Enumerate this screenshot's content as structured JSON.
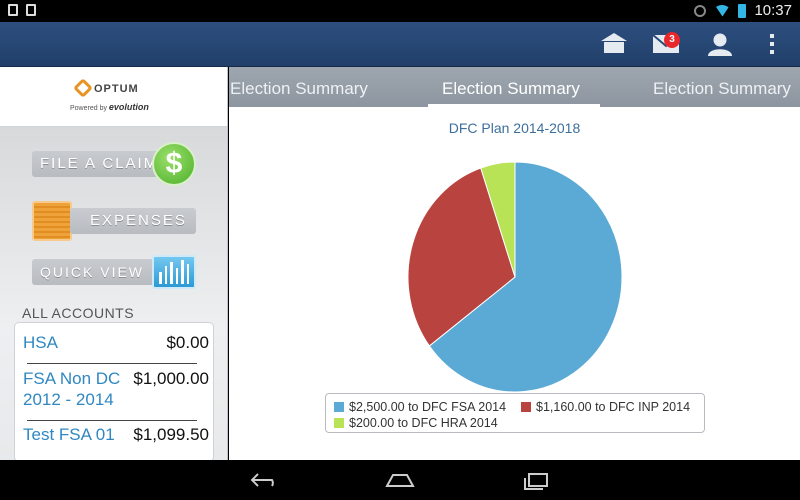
{
  "status_bar": {
    "time": "10:37"
  },
  "app_bar": {
    "mail_badge": "3"
  },
  "sidebar": {
    "logo_text": "OPTUM",
    "logo_powered": "Powered by",
    "logo_brand": "evolution",
    "file_claim_label": "FILE A CLAIM",
    "expenses_label": "EXPENSES",
    "quick_view_label": "QUICK VIEW",
    "accounts_heading": "ALL ACCOUNTS",
    "accounts": [
      {
        "name": "HSA",
        "amount": "$0.00"
      },
      {
        "name": "FSA Non DC",
        "name2": "2012 - 2014",
        "amount": "$1,000.00"
      },
      {
        "name": "Test FSA 01",
        "amount": "$1,099.50"
      }
    ]
  },
  "tabs": [
    {
      "label": "Election Summary"
    },
    {
      "label": "Election Summary"
    },
    {
      "label": "Election Summary"
    }
  ],
  "active_tab": 1,
  "colors": {
    "fsa": "#5aaad5",
    "inp": "#b8433f",
    "hra": "#b8e357"
  },
  "chart_data": {
    "type": "pie",
    "title": "DFC Plan 2014-2018",
    "slices": [
      {
        "label": "$2,500.00 to DFC FSA 2014",
        "value": 2500
      },
      {
        "label": "$1,160.00 to DFC INP 2014",
        "value": 1160
      },
      {
        "label": "$200.00 to DFC HRA 2014",
        "value": 200
      }
    ],
    "legend_placement": "bottom"
  }
}
